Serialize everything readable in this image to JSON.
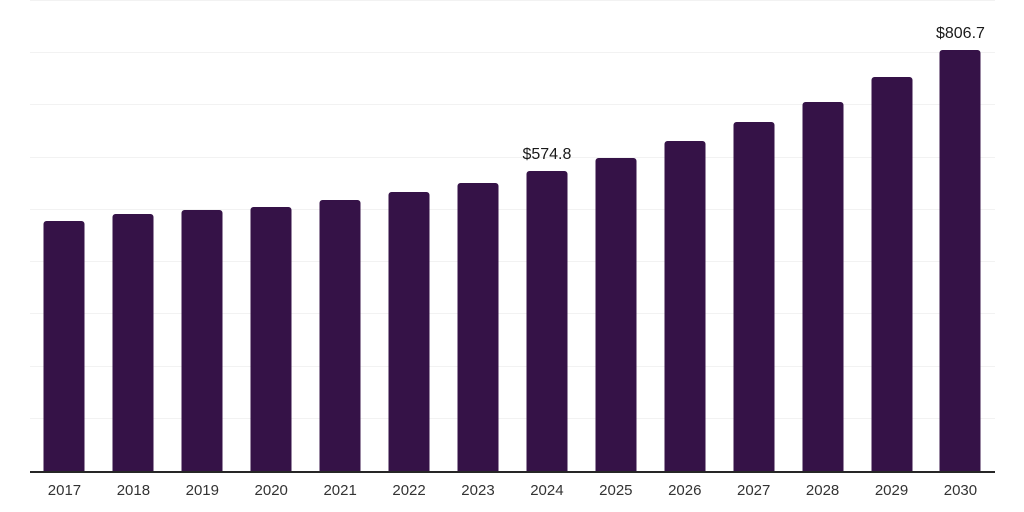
{
  "chart_data": {
    "type": "bar",
    "title": "",
    "xlabel": "",
    "ylabel": "",
    "categories": [
      "2017",
      "2018",
      "2019",
      "2020",
      "2021",
      "2022",
      "2023",
      "2024",
      "2025",
      "2026",
      "2027",
      "2028",
      "2029",
      "2030"
    ],
    "values": [
      478,
      492,
      500,
      506,
      519,
      535,
      552,
      574.8,
      600,
      631,
      669,
      707,
      755,
      806.7
    ],
    "point_labels": [
      "",
      "",
      "",
      "",
      "",
      "",
      "",
      "$574.8",
      "",
      "",
      "",
      "",
      "",
      "$806.7"
    ],
    "ylim": [
      0,
      900
    ],
    "gridline_step": 100,
    "grid": true,
    "legend": "none",
    "colors": {
      "bar": "#351247",
      "gridline": "#f2f2f2",
      "axis": "#262626",
      "tick_label": "#333333",
      "value_label": "#1a1a1a"
    }
  }
}
